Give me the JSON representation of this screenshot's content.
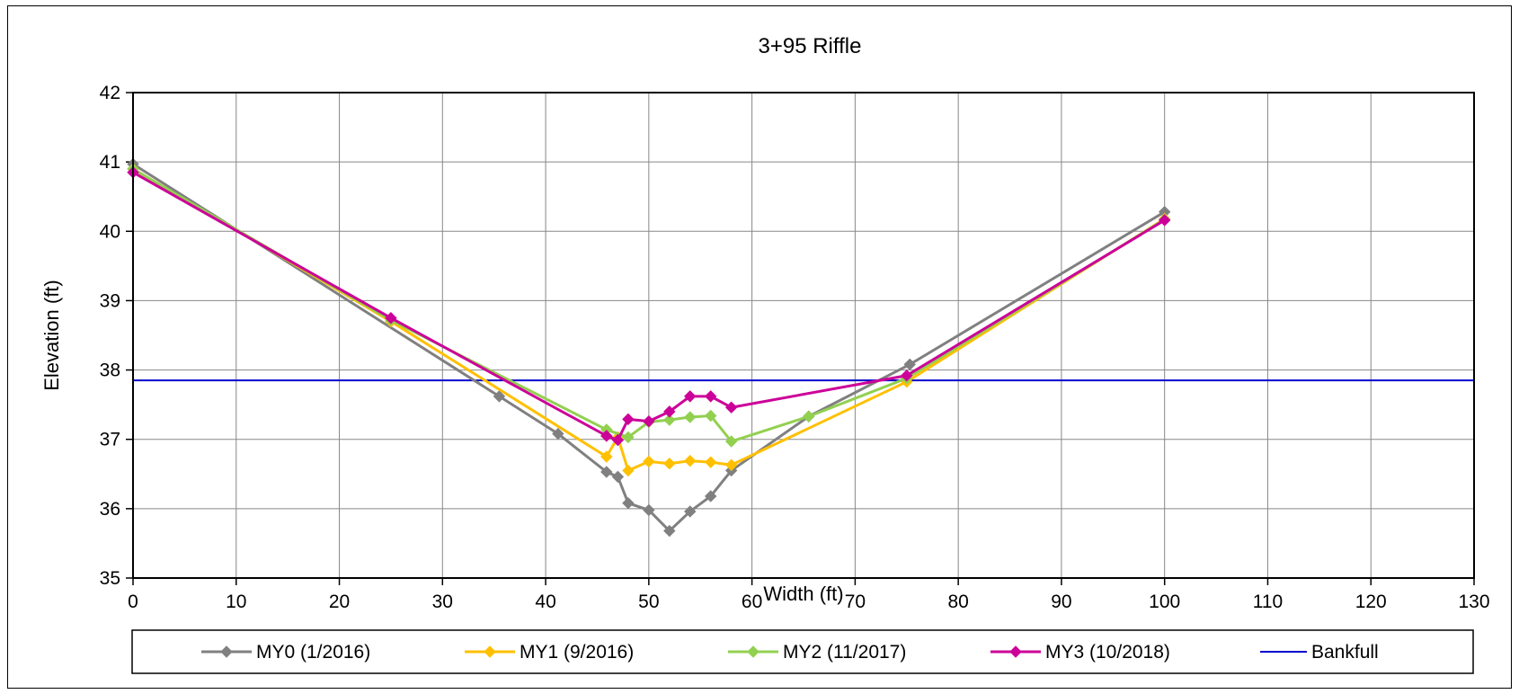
{
  "chart_data": {
    "type": "line",
    "title": "3+95 Riffle",
    "xlabel": "Width (ft)",
    "ylabel": "Elevation (ft)",
    "xlim": [
      0,
      130
    ],
    "ylim": [
      35,
      42
    ],
    "xticks": [
      0,
      10,
      20,
      30,
      40,
      50,
      60,
      70,
      80,
      90,
      100,
      110,
      120,
      130
    ],
    "yticks": [
      35,
      36,
      37,
      38,
      39,
      40,
      41,
      42
    ],
    "grid": true,
    "legend_position": "bottom",
    "series": [
      {
        "name": "MY0 (1/2016)",
        "color": "#808080",
        "marker": "diamond",
        "x": [
          0,
          35.5,
          41.2,
          45.9,
          47.0,
          48.0,
          50.0,
          52.0,
          54.0,
          56.0,
          58.0,
          65.5,
          75.3,
          100.0
        ],
        "y": [
          40.97,
          37.62,
          37.08,
          36.53,
          36.46,
          36.08,
          35.98,
          35.68,
          35.96,
          36.18,
          36.55,
          37.33,
          38.08,
          40.28
        ]
      },
      {
        "name": "MY1 (9/2016)",
        "color": "#FFC000",
        "marker": "diamond",
        "x": [
          0,
          25.0,
          45.9,
          47.0,
          48.0,
          50.0,
          52.0,
          54.0,
          56.0,
          58.0,
          75.0,
          100.0
        ],
        "y": [
          40.9,
          38.7,
          36.75,
          37.03,
          36.55,
          36.68,
          36.65,
          36.69,
          36.67,
          36.63,
          37.83,
          40.18
        ]
      },
      {
        "name": "MY2 (11/2017)",
        "color": "#92D050",
        "marker": "diamond",
        "x": [
          0,
          25.0,
          45.9,
          48.0,
          50.0,
          52.0,
          54.0,
          56.0,
          58.0,
          65.5,
          75.0,
          100.0
        ],
        "y": [
          40.9,
          38.72,
          37.14,
          37.03,
          37.25,
          37.28,
          37.32,
          37.34,
          36.97,
          37.33,
          37.88,
          40.17
        ]
      },
      {
        "name": "MY3 (10/2018)",
        "color": "#CC0099",
        "marker": "diamond",
        "x": [
          0,
          25.0,
          45.9,
          47.0,
          48.0,
          50.0,
          52.0,
          54.0,
          56.0,
          58.0,
          75.0,
          100.0
        ],
        "y": [
          40.85,
          38.75,
          37.05,
          36.99,
          37.29,
          37.26,
          37.4,
          37.62,
          37.62,
          37.46,
          37.92,
          40.16
        ]
      },
      {
        "name": "Bankfull",
        "color": "#0000CC",
        "marker": "none",
        "x": [
          0,
          130
        ],
        "y": [
          37.85,
          37.85
        ]
      }
    ]
  }
}
